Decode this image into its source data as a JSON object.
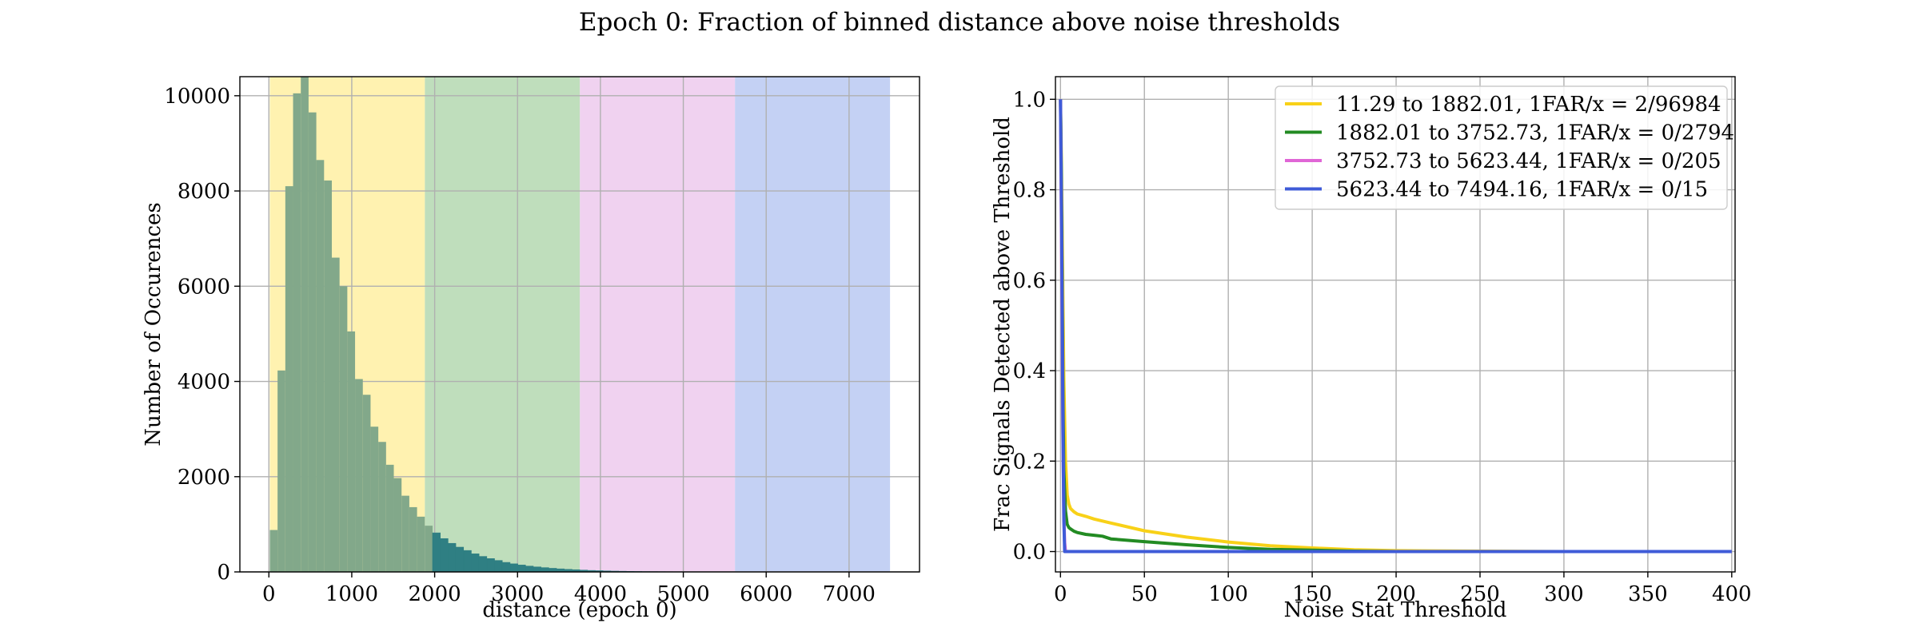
{
  "figure": {
    "title": "Epoch 0: Fraction of binned distance above noise thresholds"
  },
  "chart_data": [
    {
      "type": "bar",
      "xlabel": "distance (epoch 0)",
      "ylabel": "Number of Occurences",
      "xlim": [
        -350,
        7850
      ],
      "ylim": [
        0,
        10400
      ],
      "xticks": [
        0,
        1000,
        2000,
        3000,
        4000,
        5000,
        6000,
        7000
      ],
      "yticks": [
        0,
        2000,
        4000,
        6000,
        8000,
        10000
      ],
      "grid": true,
      "shaded_ranges": [
        {
          "from": 11.29,
          "to": 1882.01,
          "color": "#fff2b0"
        },
        {
          "from": 1882.01,
          "to": 3752.73,
          "color": "#bfdebc"
        },
        {
          "from": 3752.73,
          "to": 5623.44,
          "color": "#f0d2f0"
        },
        {
          "from": 5623.44,
          "to": 7494.16,
          "color": "#c4d1f4"
        }
      ],
      "histogram": {
        "bin_width": 93.5,
        "start": 11.29,
        "color": "#82a88a",
        "edge_color": "#2f7f83",
        "counts": [
          880,
          4230,
          8100,
          10050,
          10400,
          9650,
          8650,
          8220,
          6600,
          6000,
          5050,
          4050,
          3720,
          3050,
          2730,
          2250,
          1970,
          1600,
          1360,
          1160,
          970,
          820,
          700,
          600,
          520,
          450,
          380,
          325,
          280,
          240,
          200,
          170,
          145,
          122,
          105,
          90,
          76,
          64,
          54,
          46,
          38,
          31,
          26,
          21,
          17,
          14,
          11,
          9,
          7,
          6,
          5,
          4,
          3,
          3,
          2,
          2,
          2,
          1,
          1,
          1,
          1,
          1,
          1,
          1,
          1,
          1,
          0,
          0,
          0,
          0,
          0,
          0,
          0,
          0,
          0,
          0,
          0,
          0,
          0,
          0
        ]
      }
    },
    {
      "type": "line",
      "xlabel": "Noise Stat Threshold",
      "ylabel": "Frac Signals Detected above Threshold",
      "xlim": [
        -3,
        402
      ],
      "ylim": [
        -0.045,
        1.05
      ],
      "xticks": [
        0,
        50,
        100,
        150,
        200,
        250,
        300,
        350,
        400
      ],
      "yticks": [
        0.0,
        0.2,
        0.4,
        0.6,
        0.8,
        1.0
      ],
      "ytick_labels": [
        "0.0",
        "0.2",
        "0.4",
        "0.6",
        "0.8",
        "1.0"
      ],
      "grid": true,
      "legend_position": "top-right",
      "series": [
        {
          "name": "11.29 to 1882.01, 1FAR/x = 2/96984",
          "color": "#f8d118",
          "x": [
            0,
            0.5,
            1,
            1.5,
            2,
            3,
            4,
            5,
            6,
            8,
            10,
            15,
            20,
            30,
            50,
            75,
            100,
            125,
            150,
            175,
            200,
            250,
            300,
            350,
            400
          ],
          "y": [
            1.0,
            0.88,
            0.72,
            0.55,
            0.38,
            0.2,
            0.125,
            0.105,
            0.095,
            0.088,
            0.083,
            0.078,
            0.072,
            0.063,
            0.046,
            0.032,
            0.021,
            0.013,
            0.008,
            0.004,
            0.002,
            0.001,
            0.0,
            0.0,
            0.0
          ]
        },
        {
          "name": "1882.01 to 3752.73, 1FAR/x = 0/2794",
          "color": "#238b23",
          "x": [
            0,
            0.5,
            1,
            1.5,
            2,
            3,
            4,
            5,
            6,
            8,
            10,
            15,
            20,
            25,
            30,
            50,
            75,
            100,
            125,
            150,
            175,
            200,
            250,
            300,
            400
          ],
          "y": [
            1.0,
            0.85,
            0.6,
            0.35,
            0.18,
            0.09,
            0.06,
            0.053,
            0.05,
            0.045,
            0.042,
            0.038,
            0.036,
            0.034,
            0.028,
            0.022,
            0.015,
            0.009,
            0.005,
            0.003,
            0.001,
            0.0,
            0.0,
            0.0,
            0.0
          ]
        },
        {
          "name": "3752.73 to 5623.44, 1FAR/x = 0/205",
          "color": "#e066d6",
          "x": [
            0,
            0.5,
            1,
            1.5,
            2,
            2.5,
            3,
            4,
            400
          ],
          "y": [
            1.0,
            0.75,
            0.5,
            0.25,
            0.08,
            0.02,
            0.0,
            0.0,
            0.0
          ]
        },
        {
          "name": "5623.44 to 7494.16, 1FAR/x = 0/15",
          "color": "#3f5bd8",
          "x": [
            0,
            0.5,
            1,
            1.5,
            2,
            2.5,
            3,
            400
          ],
          "y": [
            1.0,
            0.8,
            0.55,
            0.27,
            0.07,
            0.0,
            0.0,
            0.0
          ]
        }
      ]
    }
  ]
}
